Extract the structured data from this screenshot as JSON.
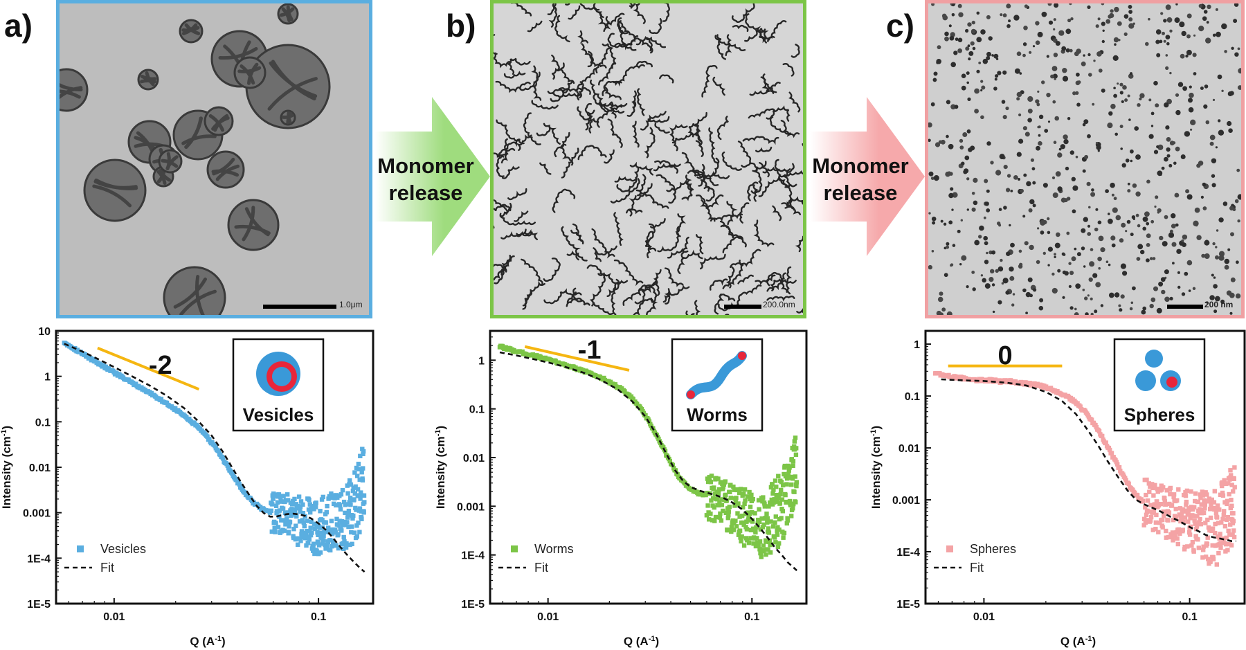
{
  "panels": [
    {
      "letter": "a)",
      "scale_bar": "1.0μm",
      "border_color": "#5aaee0",
      "morphology": "vesicles"
    },
    {
      "letter": "b)",
      "scale_bar": "200.0nm",
      "border_color": "#7cc547",
      "morphology": "worms"
    },
    {
      "letter": "c)",
      "scale_bar": "200 nm",
      "border_color": "#f0a0a2",
      "morphology": "spheres"
    }
  ],
  "arrows": [
    {
      "line1": "Monomer",
      "line2": "release",
      "color": "#9fdc7e"
    },
    {
      "line1": "Monomer",
      "line2": "release",
      "color": "#f6a9ab"
    }
  ],
  "chart_data": [
    {
      "type": "scatter",
      "xlabel": "Q  (A",
      "xlabel_sup": "-1",
      "xlabel_end": ")",
      "ylabel": "Intensity (cm",
      "ylabel_sup": "-1",
      "ylabel_end": ")",
      "xscale": "log",
      "yscale": "log",
      "xlim": [
        0.0052,
        0.185
      ],
      "ylim": [
        1e-05,
        10
      ],
      "yticks": [
        10,
        1,
        0.1,
        0.01,
        0.001,
        0.0001,
        1e-05
      ],
      "yticklabels": [
        "10",
        "1",
        "0.1",
        "0.01",
        "0.001",
        "1E-4",
        "1E-5"
      ],
      "xticks": [
        0.01,
        0.1
      ],
      "xticklabels": [
        "0.01",
        "0.1"
      ],
      "slope_label": "-2",
      "slope_line": {
        "x": [
          0.0083,
          0.026
        ],
        "y": [
          4.2,
          0.52
        ]
      },
      "inset_label": "Vesicles",
      "legend_position": "bottom-left",
      "series": [
        {
          "name": "Vesicles",
          "color": "#5aaee0",
          "marker": "square",
          "x": [
            0.0057,
            0.0062,
            0.0068,
            0.0075,
            0.0083,
            0.0092,
            0.0102,
            0.0113,
            0.0125,
            0.0139,
            0.0154,
            0.017,
            0.0189,
            0.021,
            0.0233,
            0.0258,
            0.0286,
            0.0318,
            0.0352,
            0.039,
            0.0432,
            0.0478,
            0.053,
            0.0585,
            0.0645,
            0.071,
            0.078,
            0.086,
            0.094,
            0.103,
            0.112,
            0.122,
            0.133,
            0.145,
            0.158,
            0.168
          ],
          "y": [
            5.6,
            4.4,
            3.4,
            2.6,
            2.0,
            1.5,
            1.15,
            0.88,
            0.68,
            0.52,
            0.4,
            0.3,
            0.22,
            0.16,
            0.11,
            0.075,
            0.045,
            0.025,
            0.012,
            0.0058,
            0.0028,
            0.0017,
            0.0012,
            0.001,
            0.0011,
            0.0009,
            0.0007,
            0.0006,
            0.0005,
            0.0005,
            0.0006,
            0.0007,
            0.0008,
            0.0012,
            0.002,
            0.007
          ]
        },
        {
          "name": "Fit",
          "color": "#111111",
          "style": "dashed",
          "x": [
            0.0057,
            0.007,
            0.0085,
            0.01,
            0.012,
            0.015,
            0.018,
            0.022,
            0.026,
            0.03,
            0.034,
            0.038,
            0.042,
            0.046,
            0.05,
            0.054,
            0.058,
            0.062,
            0.066,
            0.07,
            0.075,
            0.08,
            0.086,
            0.092,
            0.1,
            0.11,
            0.12,
            0.13,
            0.14,
            0.15,
            0.16,
            0.168
          ],
          "y": [
            5.2,
            3.5,
            2.3,
            1.6,
            1.05,
            0.62,
            0.38,
            0.2,
            0.1,
            0.05,
            0.022,
            0.0095,
            0.0045,
            0.0024,
            0.0014,
            0.00098,
            0.00082,
            0.00082,
            0.00088,
            0.00093,
            0.00095,
            0.00092,
            0.00085,
            0.00075,
            0.00058,
            0.0004,
            0.00025,
            0.00016,
            0.00011,
            8e-05,
            6e-05,
            5e-05
          ]
        }
      ]
    },
    {
      "type": "scatter",
      "xlabel": "Q  (A",
      "xlabel_sup": "-1",
      "xlabel_end": ")",
      "ylabel": "Intensity (cm",
      "ylabel_sup": "-1",
      "ylabel_end": ")",
      "xscale": "log",
      "yscale": "log",
      "xlim": [
        0.0052,
        0.185
      ],
      "ylim": [
        1e-05,
        4
      ],
      "yticks": [
        1,
        0.1,
        0.01,
        0.001,
        0.0001,
        1e-05
      ],
      "yticklabels": [
        "1",
        "0.1",
        "0.01",
        "0.001",
        "1E-4",
        "1E-5"
      ],
      "xticks": [
        0.01,
        0.1
      ],
      "xticklabels": [
        "0.01",
        "0.1"
      ],
      "slope_label": "-1",
      "slope_line": {
        "x": [
          0.0077,
          0.025
        ],
        "y": [
          1.9,
          0.62
        ]
      },
      "inset_label": "Worms",
      "legend_position": "bottom-left",
      "series": [
        {
          "name": "Worms",
          "color": "#7cc547",
          "marker": "square",
          "x": [
            0.0058,
            0.0064,
            0.0071,
            0.0079,
            0.0088,
            0.0098,
            0.0109,
            0.0121,
            0.0135,
            0.015,
            0.0167,
            0.0186,
            0.0207,
            0.023,
            0.0256,
            0.0285,
            0.0317,
            0.0352,
            0.0392,
            0.0436,
            0.0485,
            0.054,
            0.06,
            0.067,
            0.074,
            0.082,
            0.091,
            0.1,
            0.11,
            0.12,
            0.131,
            0.143,
            0.156,
            0.166
          ],
          "y": [
            1.9,
            1.7,
            1.5,
            1.35,
            1.2,
            1.05,
            0.92,
            0.8,
            0.7,
            0.6,
            0.5,
            0.42,
            0.33,
            0.25,
            0.17,
            0.1,
            0.05,
            0.022,
            0.009,
            0.0042,
            0.0025,
            0.0019,
            0.0016,
            0.0013,
            0.001,
            0.0008,
            0.0006,
            0.0005,
            0.0004,
            0.0005,
            0.0007,
            0.001,
            0.0018,
            0.0055
          ]
        },
        {
          "name": "Fit",
          "color": "#111111",
          "style": "dashed",
          "x": [
            0.0058,
            0.007,
            0.0085,
            0.01,
            0.012,
            0.015,
            0.018,
            0.022,
            0.026,
            0.03,
            0.034,
            0.038,
            0.042,
            0.046,
            0.05,
            0.055,
            0.06,
            0.066,
            0.072,
            0.08,
            0.09,
            0.1,
            0.11,
            0.12,
            0.13,
            0.14,
            0.15,
            0.16,
            0.166
          ],
          "y": [
            1.45,
            1.25,
            1.05,
            0.9,
            0.74,
            0.55,
            0.4,
            0.25,
            0.14,
            0.07,
            0.03,
            0.012,
            0.0055,
            0.0033,
            0.0025,
            0.0021,
            0.0019,
            0.0017,
            0.0015,
            0.0012,
            0.00085,
            0.00055,
            0.00035,
            0.00022,
            0.00014,
            0.0001,
            7e-05,
            5.5e-05,
            4.8e-05
          ]
        }
      ]
    },
    {
      "type": "scatter",
      "xlabel": "Q  (A",
      "xlabel_sup": "-1",
      "xlabel_end": ")",
      "ylabel": "Intensity (cm",
      "ylabel_sup": "-1",
      "ylabel_end": ")",
      "xscale": "log",
      "yscale": "log",
      "xlim": [
        0.0052,
        0.185
      ],
      "ylim": [
        1e-05,
        1.8
      ],
      "yticks": [
        1,
        0.1,
        0.01,
        0.001,
        0.0001,
        1e-05
      ],
      "yticklabels": [
        "1",
        "0.1",
        "0.01",
        "0.001",
        "1E-4",
        "1E-5"
      ],
      "xticks": [
        0.01,
        0.1
      ],
      "xticklabels": [
        "0.01",
        "0.1"
      ],
      "slope_label": "0",
      "slope_line": {
        "x": [
          0.0067,
          0.024
        ],
        "y": [
          0.38,
          0.38
        ]
      },
      "inset_label": "Spheres",
      "legend_position": "bottom-left",
      "series": [
        {
          "name": "Spheres",
          "color": "#f4a3a5",
          "marker": "square",
          "x": [
            0.0058,
            0.0064,
            0.0071,
            0.0079,
            0.0088,
            0.0098,
            0.0109,
            0.0121,
            0.0135,
            0.015,
            0.0167,
            0.0186,
            0.0207,
            0.023,
            0.0256,
            0.0285,
            0.0317,
            0.0352,
            0.0392,
            0.0436,
            0.0485,
            0.054,
            0.06,
            0.067,
            0.074,
            0.082,
            0.091,
            0.1,
            0.11,
            0.12,
            0.131,
            0.143,
            0.156,
            0.166
          ],
          "y": [
            0.28,
            0.25,
            0.23,
            0.22,
            0.21,
            0.2,
            0.2,
            0.19,
            0.19,
            0.18,
            0.17,
            0.16,
            0.14,
            0.12,
            0.095,
            0.07,
            0.045,
            0.025,
            0.012,
            0.0055,
            0.0025,
            0.0013,
            0.0009,
            0.0007,
            0.0006,
            0.0005,
            0.00045,
            0.0004,
            0.00035,
            0.0003,
            0.0003,
            0.00035,
            0.0005,
            0.0008
          ]
        },
        {
          "name": "Fit",
          "color": "#111111",
          "style": "dashed",
          "x": [
            0.0062,
            0.008,
            0.01,
            0.013,
            0.016,
            0.02,
            0.024,
            0.028,
            0.032,
            0.036,
            0.04,
            0.045,
            0.05,
            0.055,
            0.06,
            0.066,
            0.072,
            0.08,
            0.09,
            0.1,
            0.11,
            0.12,
            0.13,
            0.14,
            0.15,
            0.16,
            0.168
          ],
          "y": [
            0.21,
            0.2,
            0.195,
            0.18,
            0.16,
            0.12,
            0.08,
            0.045,
            0.022,
            0.011,
            0.0055,
            0.0027,
            0.0015,
            0.001,
            0.00082,
            0.0007,
            0.0006,
            0.00048,
            0.00038,
            0.0003,
            0.00025,
            0.00021,
            0.00019,
            0.00018,
            0.00017,
            0.00016,
            0.00016
          ]
        }
      ]
    }
  ]
}
